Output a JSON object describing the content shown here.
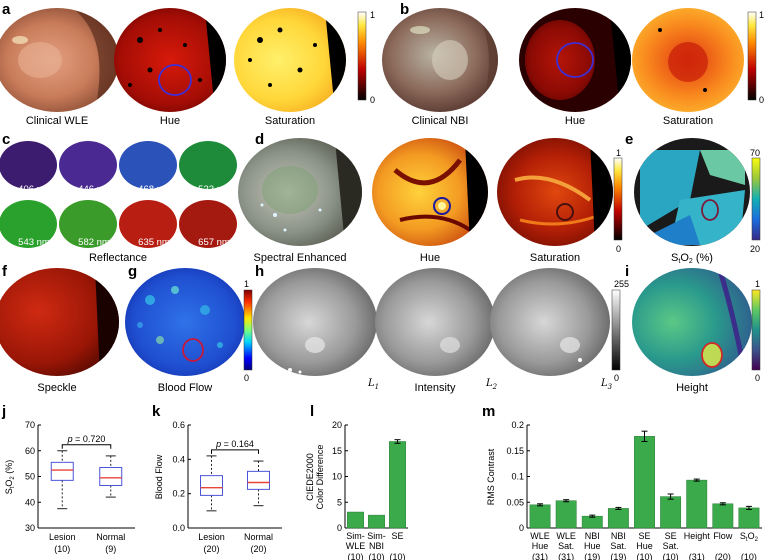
{
  "panel_labels": {
    "a": "a",
    "b": "b",
    "c": "c",
    "d": "d",
    "e": "e",
    "f": "f",
    "g": "g",
    "h": "h",
    "i": "i",
    "j": "j",
    "k": "k",
    "l": "l",
    "m": "m"
  },
  "captions": {
    "a1": "Clinical WLE",
    "a2": "Hue",
    "a3": "Saturation",
    "b1": "Clinical NBI",
    "b2": "Hue",
    "b3": "Saturation",
    "c": "Reflectance",
    "d1": "Spectral Enhanced",
    "d2": "Hue",
    "d3": "Saturation",
    "e": "S_tO_2 (%)",
    "f": "Speckle",
    "g": "Blood Flow",
    "h": "Intensity",
    "i": "Height"
  },
  "e_caption": {
    "main": "S",
    "sub1": "t",
    "mid": "O",
    "sub2": "2",
    "tail": " (%)"
  },
  "wavelengths": [
    "406 nm",
    "446 nm",
    "468 nm",
    "522 nm",
    "543 nm",
    "582 nm",
    "635 nm",
    "657 nm"
  ],
  "colorbars": {
    "a": {
      "max": "1",
      "min": "0"
    },
    "b": {
      "max": "1",
      "min": "0"
    },
    "d": {
      "max": "1",
      "min": "0"
    },
    "e": {
      "max": "70",
      "min": "20"
    },
    "g": {
      "max": "1",
      "min": "0"
    },
    "h": {
      "max": "255",
      "min": "0"
    },
    "i": {
      "max": "1",
      "min": "0"
    }
  },
  "light_labels": [
    "L",
    "L",
    "L"
  ],
  "light_subs": [
    "1",
    "2",
    "3"
  ],
  "colors": {
    "bar": "#3aaa4a",
    "box": "#4a55d8",
    "median": "#e8453c"
  },
  "chart_data": [
    {
      "panel": "j",
      "type": "box",
      "ylabel": "S_tO_2 (%)",
      "ylabel_parts": {
        "main": "S",
        "sub1": "t",
        "mid": "O",
        "sub2": "2",
        "tail": " (%)"
      },
      "ylim": [
        30,
        70
      ],
      "yticks": [
        30,
        40,
        50,
        60,
        70
      ],
      "categories": [
        "Lesion",
        "Normal"
      ],
      "counts": [
        "(10)",
        "(9)"
      ],
      "boxes": [
        {
          "whisker_low": 37.5,
          "q1": 48.5,
          "median": 52.5,
          "q3": 55.5,
          "whisker_high": 60
        },
        {
          "whisker_low": 42,
          "q1": 46.5,
          "median": 49.5,
          "q3": 53.5,
          "whisker_high": 58
        }
      ],
      "annotation": "p = 0.720",
      "annotation_parts": {
        "p": "p",
        "rest": " = 0.720"
      }
    },
    {
      "panel": "k",
      "type": "box",
      "ylabel": "Blood Flow",
      "ylim": [
        0,
        0.6
      ],
      "yticks": [
        0,
        0.2,
        0.4,
        0.6
      ],
      "ytick_labels": [
        "0.0",
        "0.2",
        "0.4",
        "0.6"
      ],
      "categories": [
        "Lesion",
        "Normal"
      ],
      "counts": [
        "(20)",
        "(20)"
      ],
      "boxes": [
        {
          "whisker_low": 0.1,
          "q1": 0.19,
          "median": 0.235,
          "q3": 0.305,
          "whisker_high": 0.42
        },
        {
          "whisker_low": 0.13,
          "q1": 0.225,
          "median": 0.265,
          "q3": 0.33,
          "whisker_high": 0.39
        }
      ],
      "annotation": "p = 0.164",
      "annotation_parts": {
        "p": "p",
        "rest": " = 0.164"
      }
    },
    {
      "panel": "l",
      "type": "bar",
      "ylabel": "CIEDE2000 Color Difference",
      "ylabel_lines": [
        "CIEDE2000",
        "Color Difference"
      ],
      "ylim": [
        0,
        20
      ],
      "yticks": [
        0,
        5,
        10,
        15,
        20
      ],
      "categories": [
        [
          "Sim-",
          "WLE"
        ],
        [
          "Sim-",
          "NBI"
        ],
        [
          "SE"
        ]
      ],
      "counts": [
        "(10)",
        "(10)",
        "(10)"
      ],
      "values": [
        3.1,
        2.5,
        16.8
      ],
      "errors": [
        0,
        0,
        0.35
      ]
    },
    {
      "panel": "m",
      "type": "bar",
      "ylabel": "RMS Contrast",
      "ylim": [
        0,
        0.2
      ],
      "yticks": [
        0,
        0.05,
        0.1,
        0.15,
        0.2
      ],
      "ytick_labels": [
        "0",
        "0.05",
        "0.1",
        "0.15",
        "0.2"
      ],
      "categories": [
        [
          "WLE",
          "Hue"
        ],
        [
          "WLE",
          "Sat."
        ],
        [
          "NBI",
          "Hue"
        ],
        [
          "NBI",
          "Sat."
        ],
        [
          "SE",
          "Hue"
        ],
        [
          "SE",
          "Sat."
        ],
        [
          "Height"
        ],
        [
          "Flow"
        ],
        [
          "S_tO_2"
        ]
      ],
      "counts": [
        "(31)",
        "(31)",
        "(19)",
        "(19)",
        "(10)",
        "(10)",
        "(31)",
        "(20)",
        "(10)"
      ],
      "values": [
        0.045,
        0.053,
        0.023,
        0.038,
        0.178,
        0.061,
        0.093,
        0.047,
        0.039
      ],
      "errors": [
        0.002,
        0.002,
        0.002,
        0.002,
        0.01,
        0.005,
        0.002,
        0.002,
        0.003
      ]
    }
  ]
}
